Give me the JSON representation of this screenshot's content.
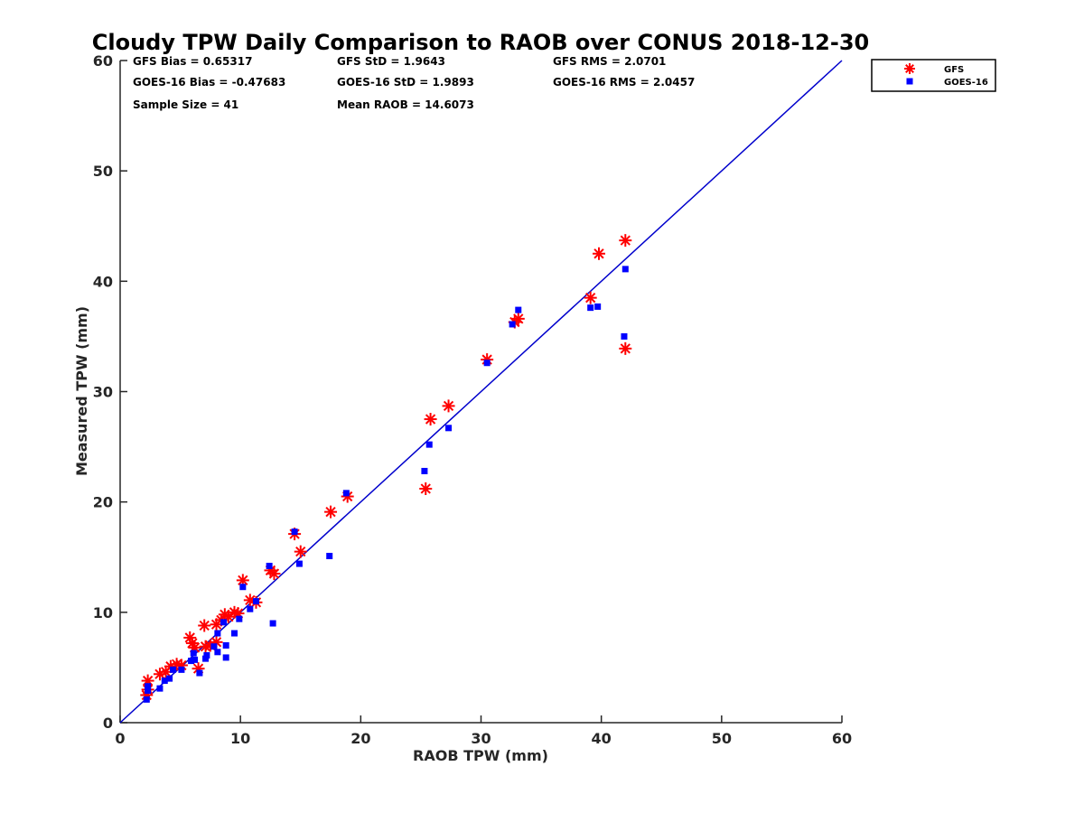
{
  "chart_data": {
    "type": "scatter",
    "title": "Cloudy TPW Daily Comparison to RAOB over CONUS 2018-12-30",
    "xlabel": "RAOB TPW (mm)",
    "ylabel": "Measured TPW (mm)",
    "xlim": [
      0,
      60
    ],
    "ylim": [
      0,
      60
    ],
    "xticks": [
      "0",
      "10",
      "20",
      "30",
      "40",
      "50",
      "60"
    ],
    "yticks": [
      "0",
      "10",
      "20",
      "30",
      "40",
      "50",
      "60"
    ],
    "grid": false,
    "legend_position": "top-right outside",
    "stats": [
      [
        "GFS Bias = 0.65317",
        "GFS StD = 1.9643",
        "GFS RMS = 2.0701"
      ],
      [
        "GOES-16 Bias = -0.47683",
        "GOES-16 StD = 1.9893",
        "GOES-16 RMS = 2.0457"
      ],
      [
        "Sample Size = 41",
        "Mean RAOB = 14.6073",
        ""
      ]
    ],
    "reference_line": {
      "x": [
        0,
        60
      ],
      "y": [
        0,
        60
      ],
      "color": "#0000cc"
    },
    "series": [
      {
        "name": "GFS",
        "marker": "asterisk",
        "color": "#ff0000",
        "points": [
          [
            2.2,
            2.5
          ],
          [
            2.3,
            3.0
          ],
          [
            2.3,
            3.8
          ],
          [
            3.3,
            4.4
          ],
          [
            3.8,
            4.6
          ],
          [
            4.2,
            5.1
          ],
          [
            4.7,
            5.3
          ],
          [
            5.1,
            5.2
          ],
          [
            5.8,
            7.7
          ],
          [
            6.0,
            7.2
          ],
          [
            6.2,
            6.8
          ],
          [
            6.5,
            4.9
          ],
          [
            7.0,
            8.8
          ],
          [
            7.1,
            6.9
          ],
          [
            7.5,
            7.0
          ],
          [
            8.0,
            8.9
          ],
          [
            8.0,
            7.3
          ],
          [
            8.4,
            9.3
          ],
          [
            8.7,
            9.8
          ],
          [
            9.0,
            9.6
          ],
          [
            9.5,
            10.0
          ],
          [
            9.8,
            9.9
          ],
          [
            10.2,
            12.9
          ],
          [
            10.8,
            11.1
          ],
          [
            11.3,
            10.9
          ],
          [
            12.5,
            13.8
          ],
          [
            12.8,
            13.5
          ],
          [
            14.5,
            17.1
          ],
          [
            15.0,
            15.5
          ],
          [
            17.5,
            19.1
          ],
          [
            18.9,
            20.5
          ],
          [
            25.4,
            21.2
          ],
          [
            25.8,
            27.5
          ],
          [
            27.3,
            28.7
          ],
          [
            30.5,
            32.9
          ],
          [
            32.8,
            36.3
          ],
          [
            33.1,
            36.6
          ],
          [
            39.1,
            38.5
          ],
          [
            39.8,
            42.5
          ],
          [
            42.0,
            43.7
          ],
          [
            42.0,
            33.9
          ]
        ]
      },
      {
        "name": "GOES-16",
        "marker": "square",
        "color": "#0000ff",
        "points": [
          [
            2.2,
            2.1
          ],
          [
            2.3,
            2.9
          ],
          [
            2.3,
            3.3
          ],
          [
            3.3,
            3.1
          ],
          [
            3.7,
            3.8
          ],
          [
            4.1,
            4.0
          ],
          [
            4.4,
            4.8
          ],
          [
            5.1,
            4.8
          ],
          [
            5.9,
            5.6
          ],
          [
            6.1,
            6.3
          ],
          [
            6.2,
            5.7
          ],
          [
            6.6,
            4.5
          ],
          [
            7.1,
            5.8
          ],
          [
            7.2,
            6.1
          ],
          [
            7.8,
            6.9
          ],
          [
            8.1,
            8.1
          ],
          [
            8.1,
            6.4
          ],
          [
            8.6,
            9.1
          ],
          [
            8.8,
            7.0
          ],
          [
            8.8,
            5.9
          ],
          [
            9.5,
            8.1
          ],
          [
            9.9,
            9.4
          ],
          [
            10.2,
            12.3
          ],
          [
            10.8,
            10.3
          ],
          [
            11.3,
            11.0
          ],
          [
            12.4,
            14.2
          ],
          [
            12.7,
            9.0
          ],
          [
            14.5,
            17.3
          ],
          [
            14.9,
            14.4
          ],
          [
            17.4,
            15.1
          ],
          [
            18.8,
            20.8
          ],
          [
            25.3,
            22.8
          ],
          [
            25.7,
            25.2
          ],
          [
            27.3,
            26.7
          ],
          [
            30.5,
            32.6
          ],
          [
            32.6,
            36.1
          ],
          [
            33.1,
            37.4
          ],
          [
            39.1,
            37.6
          ],
          [
            39.7,
            37.7
          ],
          [
            42.0,
            41.1
          ],
          [
            41.9,
            35.0
          ]
        ]
      }
    ]
  }
}
